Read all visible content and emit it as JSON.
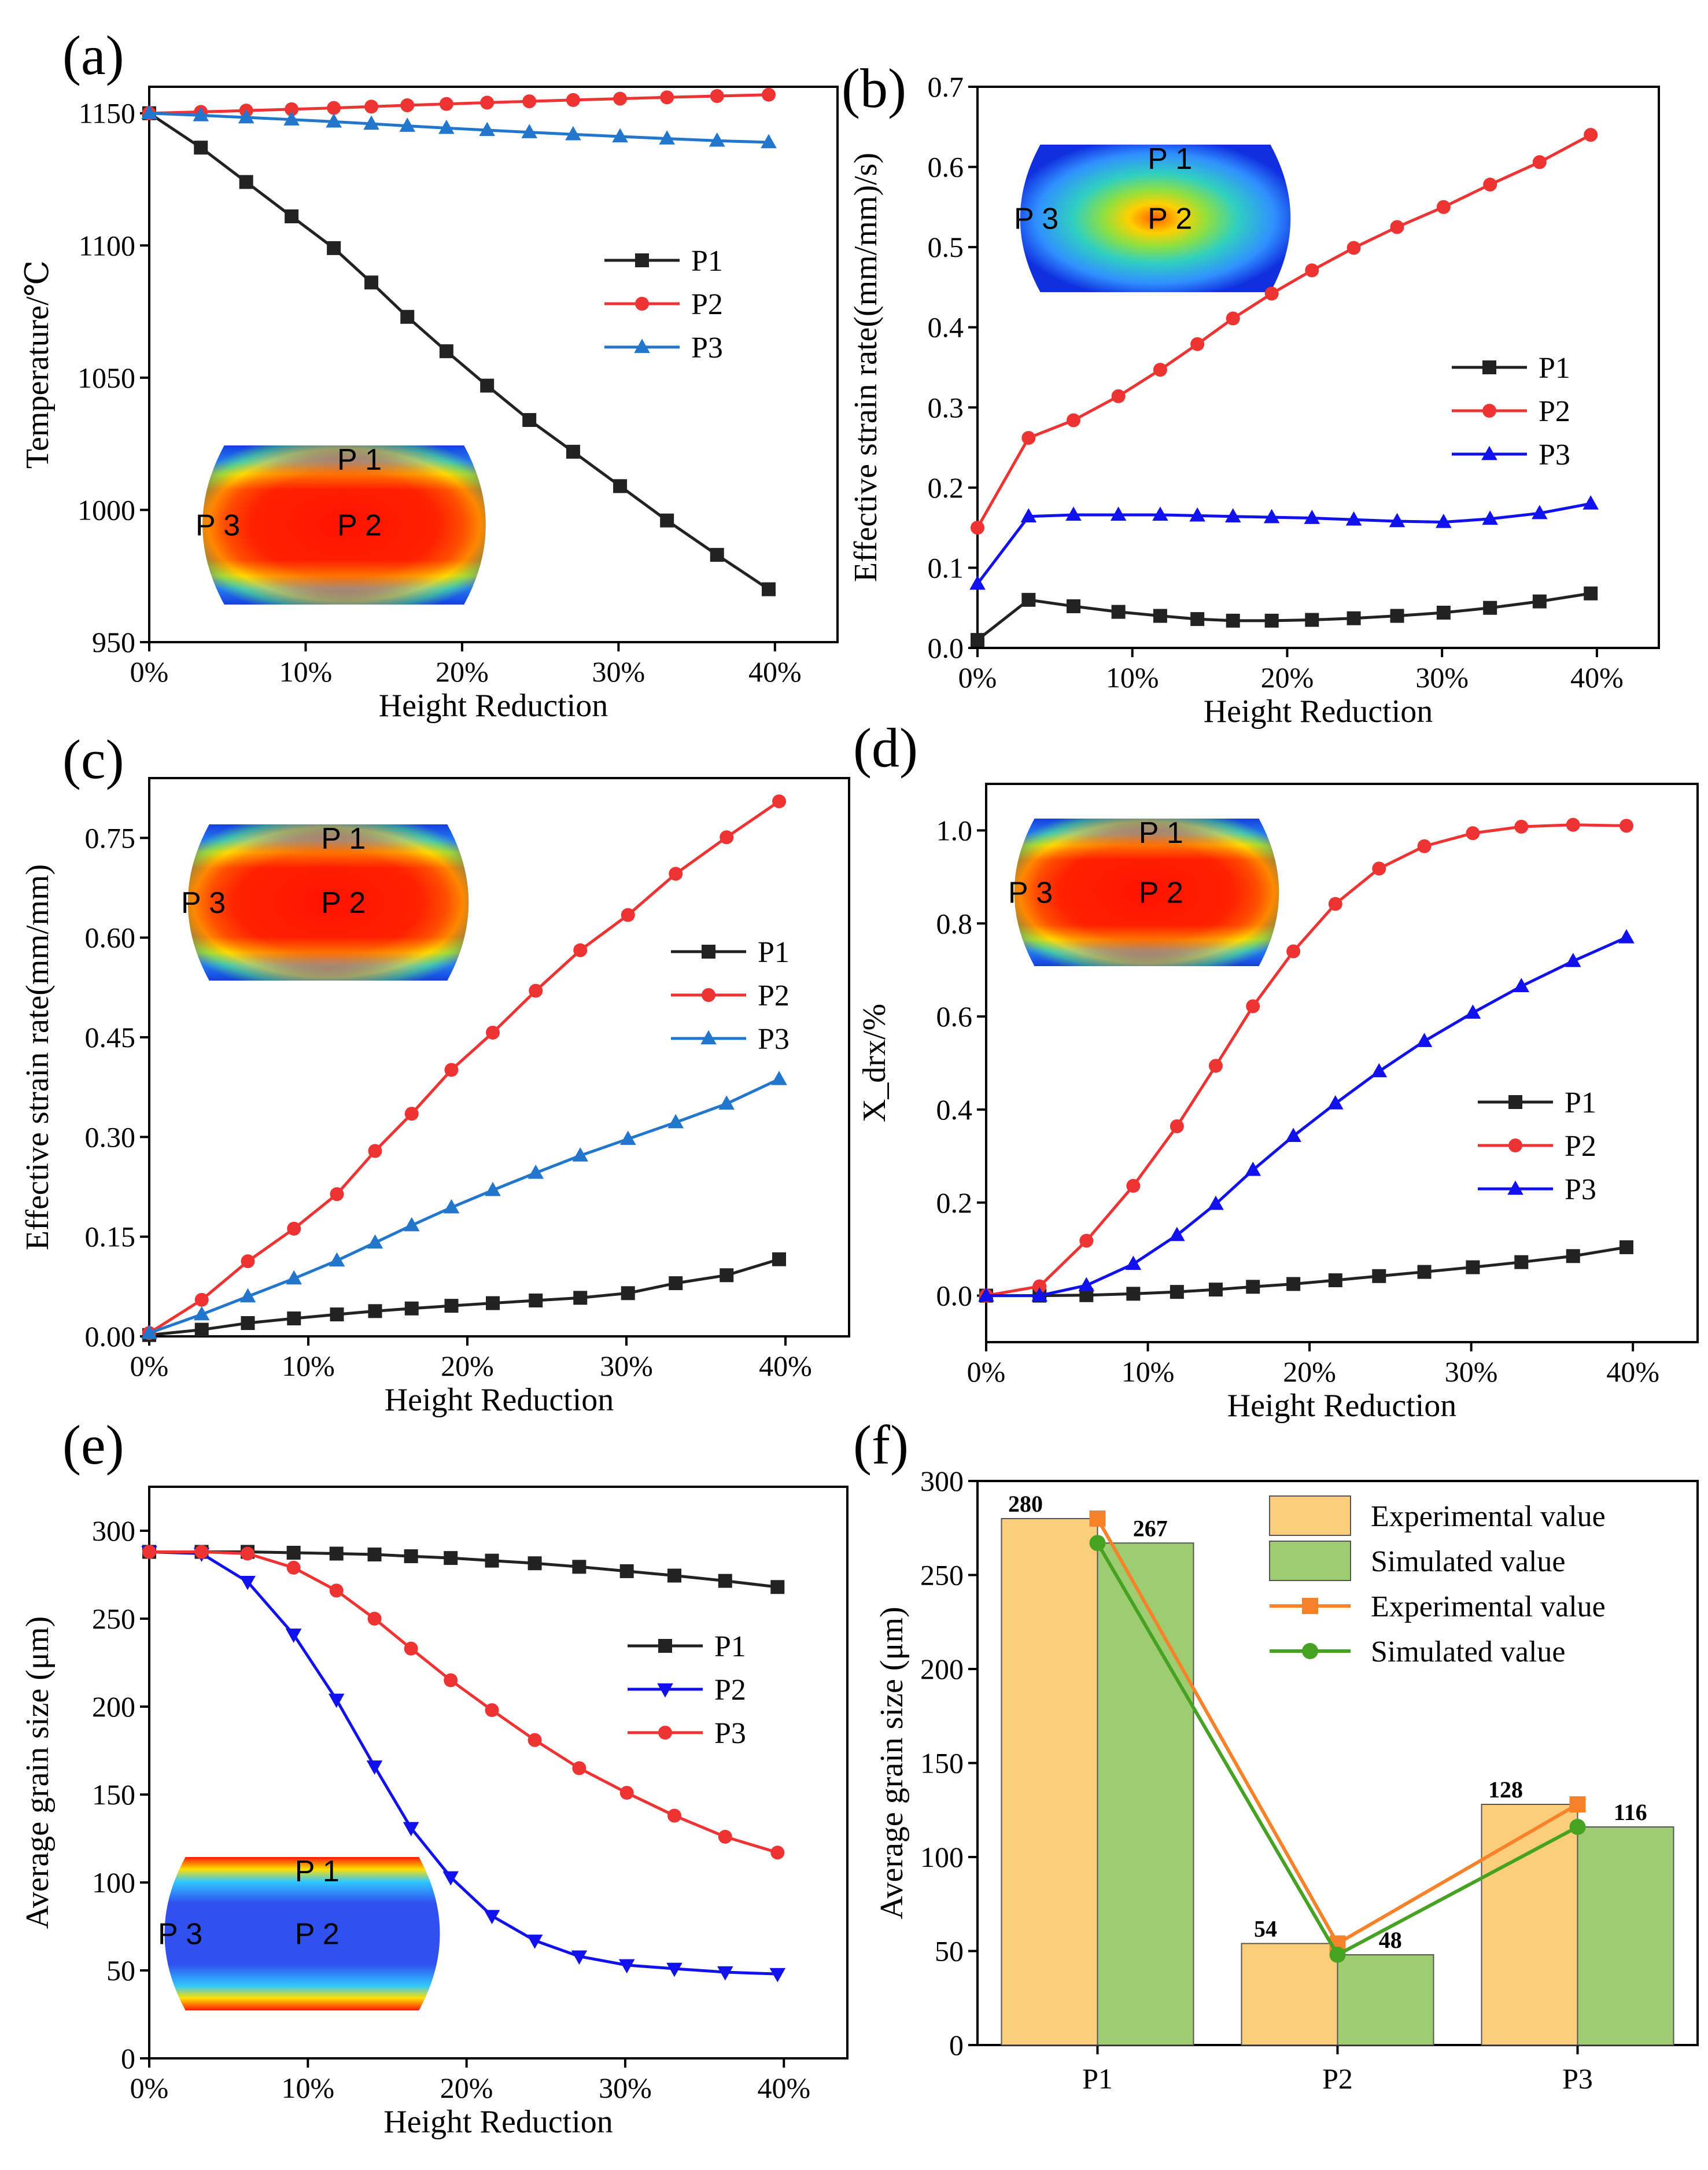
{
  "colors": {
    "black": "#222222",
    "red": "#ee3333",
    "blue": "#1111ee",
    "steel": "#2277cc",
    "bar_exp": "#fbcd7c",
    "bar_sim": "#9dcd70",
    "line_exp": "#f7822a",
    "line_sim": "#45a222"
  },
  "chart_data": [
    {
      "id": "a",
      "type": "line",
      "panel_label": "(a)",
      "xlabel": "Height Reduction",
      "ylabel": "Temperature/℃",
      "xlim": [
        0,
        44
      ],
      "ylim": [
        950,
        1160
      ],
      "xticks": [
        0,
        10,
        20,
        30,
        40
      ],
      "xtick_labels": [
        "0%",
        "10%",
        "20%",
        "30%",
        "40%"
      ],
      "yticks": [
        950,
        1000,
        1050,
        1100,
        1150
      ],
      "ytick_labels": [
        "950",
        "1000",
        "1050",
        "1100",
        "1150"
      ],
      "x": [
        0,
        3.3,
        6.2,
        9.1,
        11.8,
        14.2,
        16.5,
        19.0,
        21.6,
        24.3,
        27.1,
        30.1,
        33.1,
        36.3,
        39.6
      ],
      "series": [
        {
          "name": "P1",
          "color": "black",
          "marker": "square",
          "values": [
            1150,
            1137,
            1124,
            1111,
            1099,
            1086,
            1073,
            1060,
            1047,
            1034,
            1022,
            1009,
            996,
            983,
            970
          ]
        },
        {
          "name": "P2",
          "color": "red",
          "marker": "circle",
          "values": [
            1150,
            1150.5,
            1151,
            1151.5,
            1152,
            1152.5,
            1153,
            1153.5,
            1154,
            1154.5,
            1155,
            1155.5,
            1156,
            1156.5,
            1157
          ]
        },
        {
          "name": "P3",
          "color": "steel",
          "marker": "triangle",
          "values": [
            1150,
            1149.2,
            1148.4,
            1147.6,
            1146.8,
            1146,
            1145.2,
            1144.4,
            1143.6,
            1142.8,
            1142,
            1141.2,
            1140.4,
            1139.6,
            1139
          ]
        }
      ],
      "inset": {
        "labels": [
          "P 1",
          "P 3",
          "P 2"
        ],
        "scheme": "hot"
      }
    },
    {
      "id": "b",
      "type": "line",
      "panel_label": "(b)",
      "xlabel": "Height Reduction",
      "ylabel": "Effective strain rate((mm/mm)/s)",
      "xlim": [
        0,
        44
      ],
      "ylim": [
        0,
        0.7
      ],
      "xticks": [
        0,
        10,
        20,
        30,
        40
      ],
      "xtick_labels": [
        "0%",
        "10%",
        "20%",
        "30%",
        "40%"
      ],
      "yticks": [
        0,
        0.1,
        0.2,
        0.3,
        0.4,
        0.5,
        0.6,
        0.7
      ],
      "ytick_labels": [
        "0.0",
        "0.1",
        "0.2",
        "0.3",
        "0.4",
        "0.5",
        "0.6",
        "0.7"
      ],
      "x": [
        0,
        3.3,
        6.2,
        9.1,
        11.8,
        14.2,
        16.5,
        19.0,
        21.6,
        24.3,
        27.1,
        30.1,
        33.1,
        36.3,
        39.6
      ],
      "series": [
        {
          "name": "P1",
          "color": "black",
          "marker": "square",
          "values": [
            0.01,
            0.06,
            0.052,
            0.045,
            0.04,
            0.036,
            0.034,
            0.034,
            0.035,
            0.037,
            0.04,
            0.044,
            0.05,
            0.058,
            0.068
          ]
        },
        {
          "name": "P2",
          "color": "red",
          "marker": "circle",
          "values": [
            0.15,
            0.262,
            0.284,
            0.314,
            0.347,
            0.379,
            0.411,
            0.442,
            0.471,
            0.499,
            0.525,
            0.55,
            0.578,
            0.606,
            0.64
          ]
        },
        {
          "name": "P3",
          "color": "blue",
          "marker": "triangle",
          "values": [
            0.08,
            0.164,
            0.166,
            0.166,
            0.166,
            0.165,
            0.164,
            0.163,
            0.162,
            0.16,
            0.158,
            0.157,
            0.161,
            0.168,
            0.18
          ]
        }
      ],
      "inset": {
        "labels": [
          "P 1",
          "P 3",
          "P 2"
        ],
        "scheme": "cool"
      }
    },
    {
      "id": "c",
      "type": "line",
      "panel_label": "(c)",
      "xlabel": "Height Reduction",
      "ylabel": "Effective strain rate(mm/mm)",
      "xlim": [
        0,
        44
      ],
      "ylim": [
        0,
        0.84
      ],
      "xticks": [
        0,
        10,
        20,
        30,
        40
      ],
      "xtick_labels": [
        "0%",
        "10%",
        "20%",
        "30%",
        "40%"
      ],
      "yticks": [
        0,
        0.15,
        0.3,
        0.45,
        0.6,
        0.75
      ],
      "ytick_labels": [
        "0.00",
        "0.15",
        "0.30",
        "0.45",
        "0.60",
        "0.75"
      ],
      "x": [
        0,
        3.3,
        6.2,
        9.1,
        11.8,
        14.2,
        16.5,
        19.0,
        21.6,
        24.3,
        27.1,
        30.1,
        33.1,
        36.3,
        39.6
      ],
      "series": [
        {
          "name": "P1",
          "color": "black",
          "marker": "square",
          "values": [
            0.002,
            0.01,
            0.02,
            0.027,
            0.033,
            0.038,
            0.042,
            0.046,
            0.05,
            0.054,
            0.058,
            0.065,
            0.08,
            0.092,
            0.116
          ]
        },
        {
          "name": "P2",
          "color": "red",
          "marker": "circle",
          "values": [
            0.005,
            0.055,
            0.113,
            0.162,
            0.214,
            0.279,
            0.335,
            0.401,
            0.457,
            0.52,
            0.581,
            0.634,
            0.696,
            0.751,
            0.805
          ]
        },
        {
          "name": "P3",
          "color": "steel",
          "marker": "triangle",
          "values": [
            0.005,
            0.033,
            0.06,
            0.087,
            0.114,
            0.141,
            0.167,
            0.194,
            0.22,
            0.246,
            0.272,
            0.297,
            0.322,
            0.35,
            0.387
          ]
        }
      ],
      "inset": {
        "labels": [
          "P 1",
          "P 3",
          "P 2"
        ],
        "scheme": "hot"
      }
    },
    {
      "id": "d",
      "type": "line",
      "panel_label": "(d)",
      "xlabel": "Height Reduction",
      "ylabel": "X_drx/%",
      "xlim": [
        0,
        44
      ],
      "ylim": [
        -0.1,
        1.1
      ],
      "xticks": [
        0,
        10,
        20,
        30,
        40
      ],
      "xtick_labels": [
        "0%",
        "10%",
        "20%",
        "30%",
        "40%"
      ],
      "yticks": [
        0,
        0.2,
        0.4,
        0.6,
        0.8,
        1.0
      ],
      "ytick_labels": [
        "0.0",
        "0.2",
        "0.4",
        "0.6",
        "0.8",
        "1.0"
      ],
      "x": [
        0,
        3.3,
        6.2,
        9.1,
        11.8,
        14.2,
        16.5,
        19.0,
        21.6,
        24.3,
        27.1,
        30.1,
        33.1,
        36.3,
        39.6
      ],
      "series": [
        {
          "name": "P1",
          "color": "black",
          "marker": "square",
          "values": [
            0,
            0,
            0.001,
            0.004,
            0.008,
            0.013,
            0.019,
            0.025,
            0.033,
            0.042,
            0.051,
            0.061,
            0.072,
            0.085,
            0.104
          ]
        },
        {
          "name": "P2",
          "color": "red",
          "marker": "circle",
          "values": [
            0,
            0.02,
            0.118,
            0.236,
            0.364,
            0.494,
            0.622,
            0.74,
            0.842,
            0.918,
            0.966,
            0.994,
            1.008,
            1.012,
            1.01
          ]
        },
        {
          "name": "P3",
          "color": "blue",
          "marker": "triangle",
          "values": [
            0,
            0,
            0.022,
            0.068,
            0.13,
            0.197,
            0.27,
            0.343,
            0.413,
            0.482,
            0.547,
            0.608,
            0.665,
            0.719,
            0.77
          ]
        }
      ],
      "inset": {
        "labels": [
          "P 1",
          "P 3",
          "P 2"
        ],
        "scheme": "hot"
      }
    },
    {
      "id": "e",
      "type": "line",
      "panel_label": "(e)",
      "xlabel": "Height Reduction",
      "ylabel": "Average grain size (μm)",
      "xlim": [
        0,
        44
      ],
      "ylim": [
        0,
        325
      ],
      "xticks": [
        0,
        10,
        20,
        30,
        40
      ],
      "xtick_labels": [
        "0%",
        "10%",
        "20%",
        "30%",
        "40%"
      ],
      "yticks": [
        0,
        50,
        100,
        150,
        200,
        250,
        300
      ],
      "ytick_labels": [
        "0",
        "50",
        "100",
        "150",
        "200",
        "250",
        "300"
      ],
      "x": [
        0,
        3.3,
        6.2,
        9.1,
        11.8,
        14.2,
        16.5,
        19.0,
        21.6,
        24.3,
        27.1,
        30.1,
        33.1,
        36.3,
        39.6
      ],
      "series": [
        {
          "name": "P1",
          "color": "black",
          "marker": "square",
          "values": [
            288,
            288,
            288,
            287.5,
            287,
            286.5,
            285.5,
            284.5,
            283,
            281.5,
            279.5,
            277,
            274.5,
            271.5,
            268
          ]
        },
        {
          "name": "P2",
          "color": "blue",
          "marker": "triangle-down",
          "values": [
            288,
            287,
            271,
            241,
            204,
            166,
            131,
            103,
            81,
            67,
            58,
            53,
            51,
            49,
            48
          ]
        },
        {
          "name": "P3",
          "color": "red",
          "marker": "circle",
          "values": [
            288,
            288,
            287,
            279,
            266,
            250,
            233,
            215,
            198,
            181,
            165,
            151,
            138,
            126,
            117
          ]
        }
      ],
      "inset": {
        "labels": [
          "P 1",
          "P 3",
          "P 2"
        ],
        "scheme": "cool-hot-edge"
      }
    },
    {
      "id": "f",
      "type": "bar",
      "panel_label": "(f)",
      "ylabel": "Average grain size (μm)",
      "ylim": [
        0,
        300
      ],
      "yticks": [
        0,
        50,
        100,
        150,
        200,
        250,
        300
      ],
      "ytick_labels": [
        "0",
        "50",
        "100",
        "150",
        "200",
        "250",
        "300"
      ],
      "categories": [
        "P1",
        "P2",
        "P3"
      ],
      "series": [
        {
          "name": "Experimental value",
          "kind": "bar",
          "color": "bar_exp",
          "values": [
            280,
            54,
            128
          ],
          "labels": [
            "280",
            "54",
            "128"
          ]
        },
        {
          "name": "Simulated value",
          "kind": "bar",
          "color": "bar_sim",
          "values": [
            267,
            48,
            116
          ],
          "labels": [
            "267",
            "48",
            "116"
          ]
        },
        {
          "name": "Experimental value",
          "kind": "line",
          "color": "line_exp",
          "marker": "square",
          "values": [
            280,
            54,
            128
          ]
        },
        {
          "name": "Simulated value",
          "kind": "line",
          "color": "line_sim",
          "marker": "circle",
          "values": [
            267,
            48,
            116
          ]
        }
      ]
    }
  ]
}
